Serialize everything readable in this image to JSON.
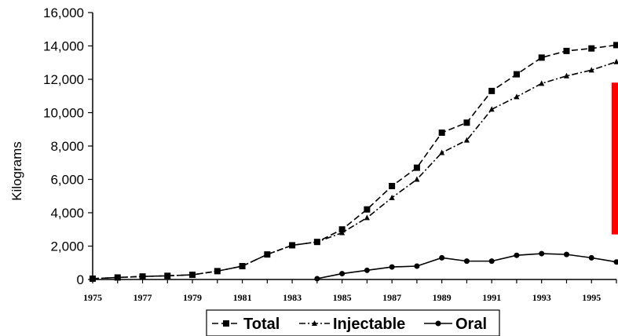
{
  "chart_data": {
    "type": "line",
    "title": "",
    "xlabel": "",
    "ylabel": "Kilograms",
    "x": [
      1975,
      1976,
      1977,
      1978,
      1979,
      1980,
      1981,
      1982,
      1983,
      1984,
      1985,
      1986,
      1987,
      1988,
      1989,
      1990,
      1991,
      1992,
      1993,
      1994,
      1995,
      1996
    ],
    "xticks": [
      "1975",
      "1977",
      "1979",
      "1981",
      "1983",
      "1985",
      "1987",
      "1989",
      "1991",
      "1993",
      "1995"
    ],
    "yticks": [
      "0",
      "2,000",
      "4,000",
      "6,000",
      "8,000",
      "10,000",
      "12,000",
      "14,000",
      "16,000"
    ],
    "ylim": [
      0,
      16000
    ],
    "xlim": [
      1975,
      1996
    ],
    "grid": false,
    "legend_position": "bottom",
    "series": [
      {
        "name": "Total",
        "marker": "square",
        "dash": "dashed",
        "values": [
          50,
          120,
          180,
          220,
          280,
          500,
          800,
          1500,
          2050,
          2250,
          3000,
          4200,
          5600,
          6700,
          8800,
          9400,
          11300,
          12300,
          13300,
          13700,
          13850,
          14050
        ]
      },
      {
        "name": "Injectable",
        "marker": "triangle",
        "dash": "dashdot",
        "values": [
          50,
          120,
          180,
          220,
          280,
          500,
          800,
          1500,
          2050,
          2250,
          2800,
          3700,
          4900,
          6000,
          7600,
          8350,
          10200,
          10950,
          11750,
          12200,
          12550,
          13050
        ]
      },
      {
        "name": "Oral",
        "marker": "circle",
        "dash": "solid",
        "x": [
          1984,
          1985,
          1986,
          1987,
          1988,
          1989,
          1990,
          1991,
          1992,
          1993,
          1994,
          1995,
          1996
        ],
        "values": [
          50,
          350,
          550,
          750,
          800,
          1300,
          1100,
          1100,
          1450,
          1550,
          1500,
          1300,
          1050
        ]
      }
    ],
    "annotation_bar": {
      "color": "#ff0000",
      "y_from": 2700,
      "y_to": 11800
    }
  }
}
